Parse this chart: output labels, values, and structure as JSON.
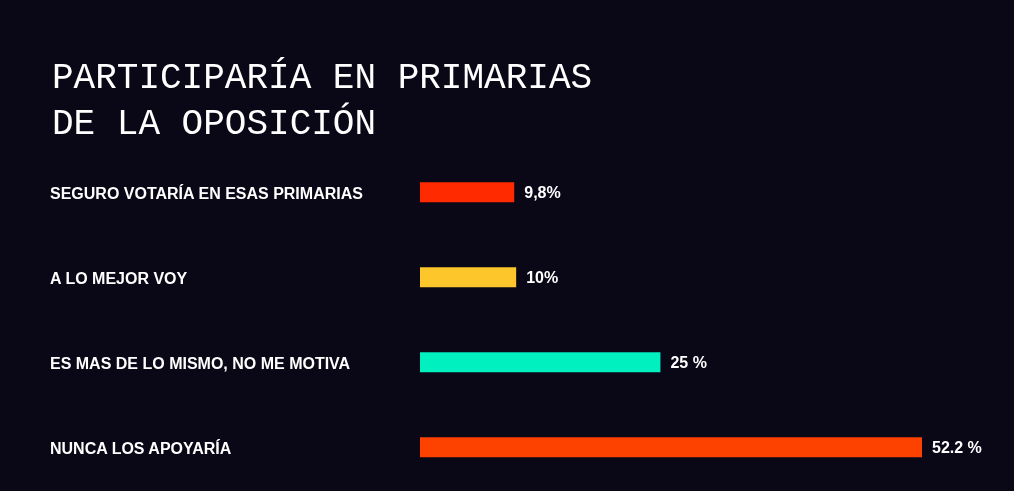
{
  "chart_data": {
    "type": "bar",
    "orientation": "horizontal",
    "title": "PARTICIPARÍA EN PRIMARIAS\nDE LA OPOSICIÓN",
    "categories": [
      "SEGURO VOTARÍA EN ESAS PRIMARIAS",
      "A LO MEJOR VOY",
      "ES MAS DE LO MISMO, NO ME MOTIVA",
      "NUNCA LOS APOYARÍA"
    ],
    "values": [
      9.8,
      10,
      25,
      52.2
    ],
    "colors": [
      "#ff2a00",
      "#fdc72b",
      "#00f0c0",
      "#fd4200"
    ],
    "value_labels": [
      "9,8%",
      "10%",
      "25 %",
      "52.2 %"
    ]
  }
}
